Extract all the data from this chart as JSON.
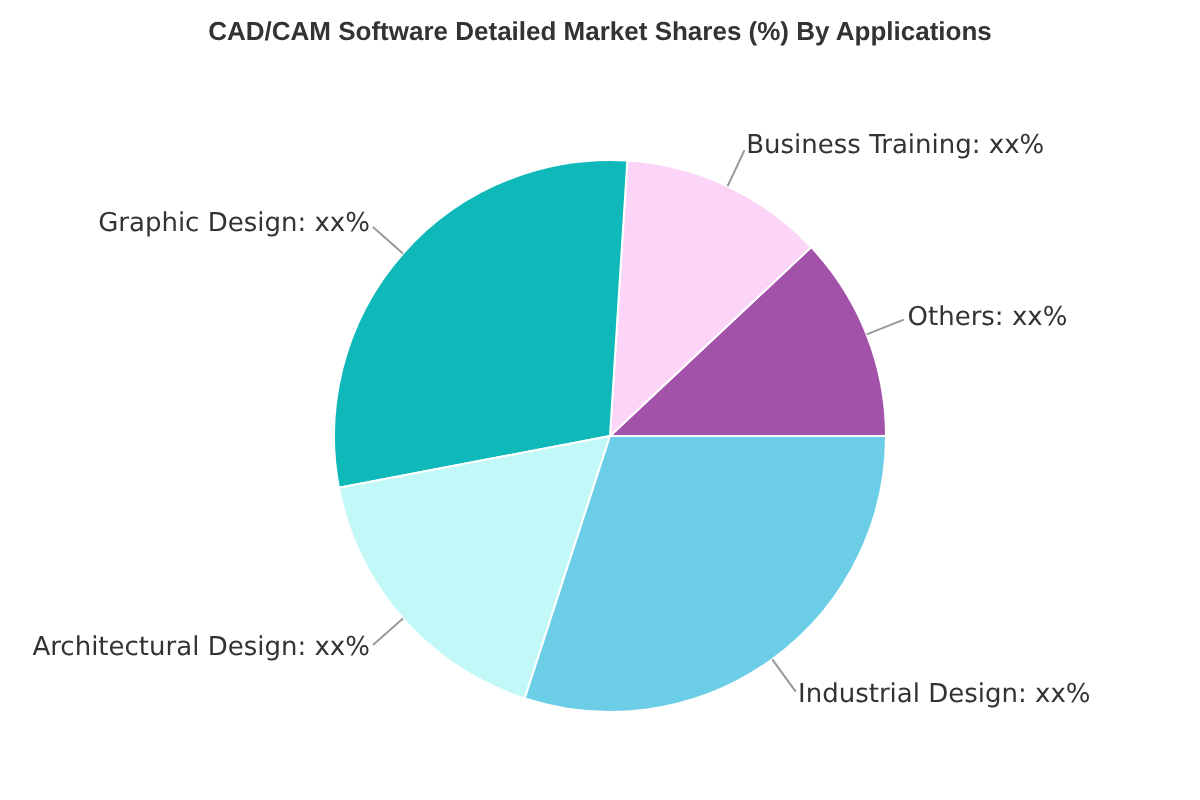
{
  "chart_data": {
    "type": "pie",
    "title": "CAD/CAM Software Detailed Market Shares (%) By Applications",
    "categories": [
      "Others",
      "Business Training",
      "Graphic Design",
      "Architectural Design",
      "Industrial Design"
    ],
    "values": [
      12,
      12,
      29,
      17,
      30
    ],
    "colors": [
      "#a352a9",
      "#fcd4f8",
      "#10b9b9",
      "#c3f8f8",
      "#6bcee6"
    ],
    "value_labels": [
      "xx%",
      "xx%",
      "xx%",
      "xx%",
      "xx%"
    ],
    "legend": false
  }
}
